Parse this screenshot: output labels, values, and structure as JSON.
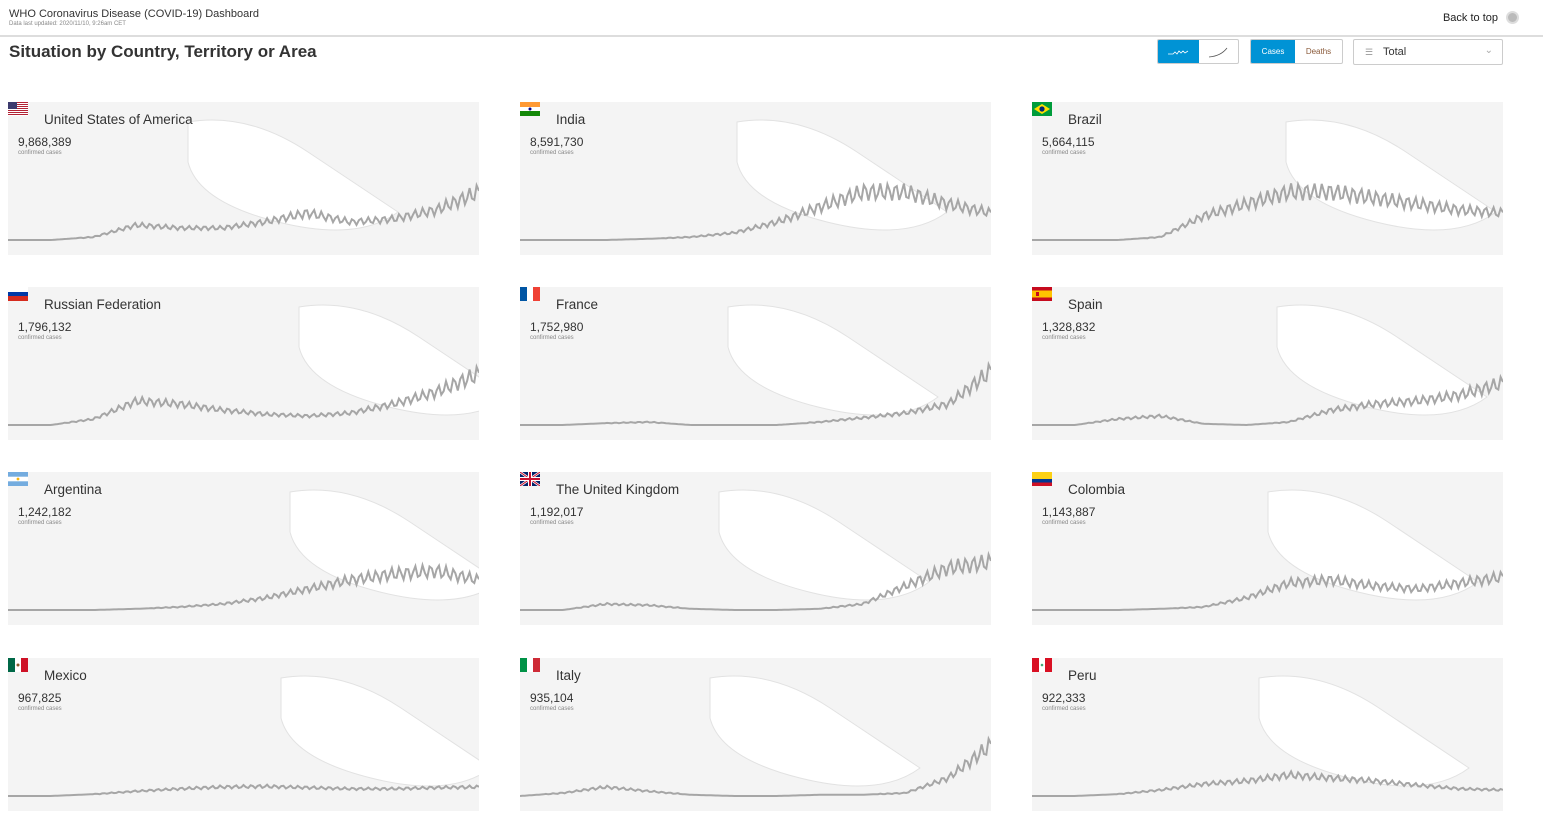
{
  "header": {
    "title": "WHO Coronavirus Disease (COVID-19) Dashboard",
    "updated": "Data last updated: 2020/11/10, 9:26am CET",
    "back_to_top": "Back to top"
  },
  "page_title": "Situation by Country, Territory or Area",
  "toolbar": {
    "chart_mode": "daily",
    "metric": {
      "cases": "Cases",
      "deaths": "Deaths",
      "active": "Cases"
    },
    "sort": {
      "value": "Total"
    }
  },
  "colors": {
    "accent": "#0093d5",
    "card_bg": "#f4f4f4",
    "line": "#a6a6a6"
  },
  "countries": [
    {
      "name": "United States of America",
      "value": "9,868,389",
      "label": "confirmed cases",
      "flag": "us",
      "trend": [
        0,
        0,
        0.05,
        0.25,
        0.2,
        0.2,
        0.3,
        0.45,
        0.3,
        0.35,
        0.5,
        0.8
      ]
    },
    {
      "name": "India",
      "value": "8,591,730",
      "label": "confirmed cases",
      "flag": "in",
      "trend": [
        0,
        0,
        0,
        0.02,
        0.05,
        0.12,
        0.3,
        0.55,
        0.8,
        0.8,
        0.6,
        0.45
      ]
    },
    {
      "name": "Brazil",
      "value": "5,664,115",
      "label": "confirmed cases",
      "flag": "br",
      "trend": [
        0,
        0,
        0,
        0.05,
        0.4,
        0.6,
        0.8,
        0.8,
        0.7,
        0.6,
        0.5,
        0.45
      ]
    },
    {
      "name": "Russian Federation",
      "value": "1,796,132",
      "label": "confirmed cases",
      "flag": "ru",
      "trend": [
        0,
        0,
        0.1,
        0.4,
        0.35,
        0.25,
        0.18,
        0.15,
        0.2,
        0.35,
        0.55,
        0.85
      ]
    },
    {
      "name": "France",
      "value": "1,752,980",
      "label": "confirmed cases",
      "flag": "fr",
      "trend": [
        0,
        0,
        0.03,
        0.05,
        0,
        0,
        0,
        0.05,
        0.12,
        0.2,
        0.35,
        0.9
      ]
    },
    {
      "name": "Spain",
      "value": "1,328,832",
      "label": "confirmed cases",
      "flag": "es",
      "trend": [
        0,
        0,
        0.1,
        0.15,
        0.02,
        0,
        0.05,
        0.25,
        0.35,
        0.4,
        0.5,
        0.7
      ]
    },
    {
      "name": "Argentina",
      "value": "1,242,182",
      "label": "confirmed cases",
      "flag": "ar",
      "trend": [
        0,
        0,
        0,
        0.02,
        0.05,
        0.1,
        0.2,
        0.35,
        0.5,
        0.6,
        0.65,
        0.5
      ]
    },
    {
      "name": "The United Kingdom",
      "value": "1,192,017",
      "label": "confirmed cases",
      "flag": "gb",
      "trend": [
        0,
        0,
        0.1,
        0.08,
        0.02,
        0,
        0,
        0.02,
        0.1,
        0.4,
        0.7,
        0.8
      ]
    },
    {
      "name": "Colombia",
      "value": "1,143,887",
      "label": "confirmed cases",
      "flag": "co",
      "trend": [
        0,
        0,
        0,
        0.02,
        0.05,
        0.2,
        0.45,
        0.5,
        0.4,
        0.35,
        0.45,
        0.55
      ]
    },
    {
      "name": "Mexico",
      "value": "967,825",
      "label": "confirmed cases",
      "flag": "mx",
      "trend": [
        0,
        0,
        0.03,
        0.08,
        0.12,
        0.15,
        0.16,
        0.14,
        0.12,
        0.12,
        0.14,
        0.15
      ]
    },
    {
      "name": "Italy",
      "value": "935,104",
      "label": "confirmed cases",
      "flag": "it",
      "trend": [
        0,
        0.05,
        0.15,
        0.08,
        0.02,
        0,
        0,
        0.02,
        0.02,
        0.05,
        0.3,
        0.85
      ]
    },
    {
      "name": "Peru",
      "value": "922,333",
      "label": "confirmed cases",
      "flag": "pe",
      "trend": [
        0,
        0,
        0.03,
        0.1,
        0.2,
        0.25,
        0.35,
        0.3,
        0.25,
        0.18,
        0.12,
        0.1
      ]
    }
  ]
}
